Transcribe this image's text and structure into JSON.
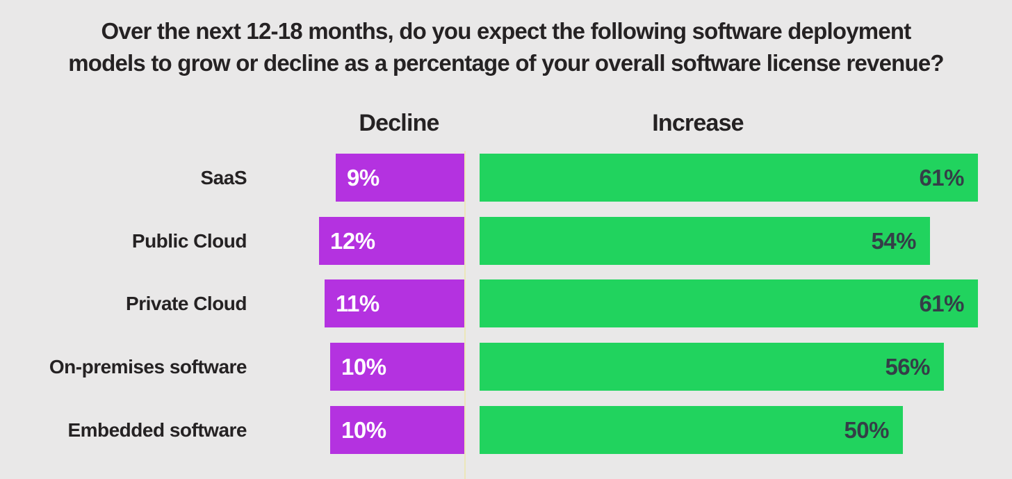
{
  "title_lines": [
    "Over the next 12-18 months, do you expect the following software deployment",
    "models to grow or decline as a percentage of your overall software license revenue?"
  ],
  "chart_data": {
    "type": "bar",
    "orientation": "horizontal-diverging",
    "title": "Over the next 12-18 months, do you expect the following software deployment models to grow or decline as a percentage of your overall software license revenue?",
    "categories": [
      "SaaS",
      "Public Cloud",
      "Private Cloud",
      "On-premises software",
      "Embedded software"
    ],
    "series": [
      {
        "name": "Decline",
        "values": [
          9,
          12,
          11,
          10,
          10
        ],
        "labels": [
          "9%",
          "12%",
          "11%",
          "10%",
          "10%"
        ],
        "side": "left",
        "value_label_position": "inside-start"
      },
      {
        "name": "Increase",
        "values": [
          61,
          54,
          61,
          56,
          50
        ],
        "labels": [
          "61%",
          "54%",
          "61%",
          "56%",
          "50%"
        ],
        "side": "right",
        "value_label_position": "inside-end"
      }
    ],
    "legend_position": "column-headers-above-bars",
    "grid": false,
    "axis_ticks": "none"
  },
  "colors": {
    "background": "#e9e8e8",
    "decline": "#b432e0",
    "increase": "#21d35e",
    "title_text": "#252223",
    "decline_label_text": "#ffffff",
    "increase_label_text": "#343e47",
    "axis_line": "#ece7b9"
  }
}
